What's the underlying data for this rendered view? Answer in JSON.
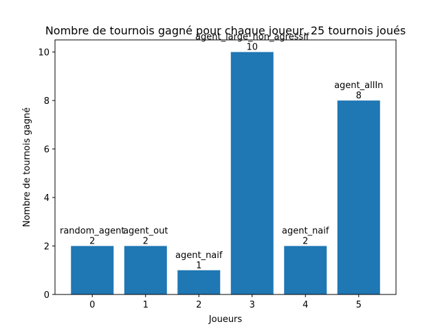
{
  "chart_data": {
    "type": "bar",
    "title": "Nombre de tournois gagné pour chaque joueur, 25 tournois joués",
    "xlabel": "Joueurs",
    "ylabel": "Nombre de tournois gagné",
    "categories": [
      "0",
      "1",
      "2",
      "3",
      "4",
      "5"
    ],
    "values": [
      2,
      2,
      1,
      10,
      2,
      8
    ],
    "bar_labels": [
      "random_agent\n2",
      "agent_out\n2",
      "agent_naif\n1",
      "agent_large_non_agressif\n10",
      "agent_naif\n2",
      "agent_allIn\n8"
    ],
    "ylim": [
      0,
      10.5
    ],
    "yticks": [
      0,
      2,
      4,
      6,
      8,
      10
    ],
    "grid": false,
    "bar_color": "#1f77b4"
  }
}
